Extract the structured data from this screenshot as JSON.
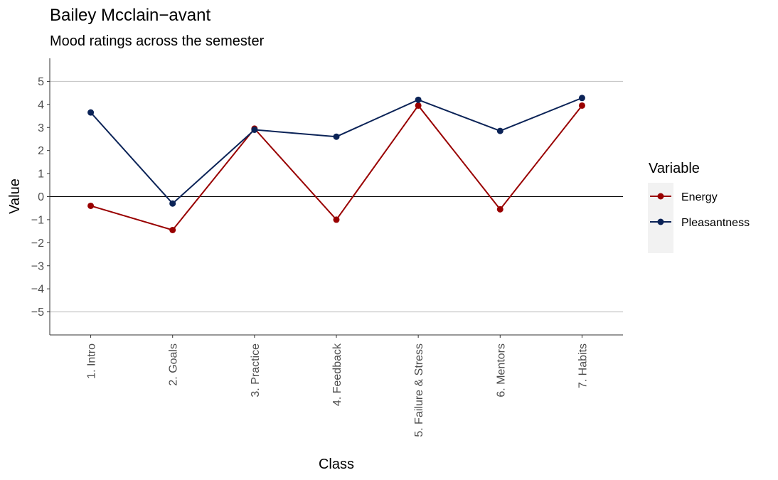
{
  "chart_data": {
    "type": "line",
    "title": "Bailey Mcclain−avant",
    "subtitle": "Mood ratings across the semester",
    "xlabel": "Class",
    "ylabel": "Value",
    "categories": [
      "1. Intro",
      "2. Goals",
      "3. Practice",
      "4. Feedback",
      "5. Failure & Stress",
      "6. Mentors",
      "7. Habits"
    ],
    "yticks": [
      5,
      4,
      3,
      2,
      1,
      0,
      -1,
      -2,
      -3,
      -4,
      -5
    ],
    "ytick_labels": [
      "5",
      "4",
      "3",
      "2",
      "1",
      "0",
      "−1",
      "−2",
      "−3",
      "−4",
      "−5"
    ],
    "ylim": [
      -6,
      6
    ],
    "reference_lines": [
      5,
      -5
    ],
    "zero_line": 0,
    "legend": {
      "title": "Variable",
      "placement": "right"
    },
    "series": [
      {
        "name": "Energy",
        "color": "#990000",
        "values": [
          -0.4,
          -1.45,
          2.95,
          -1.0,
          3.95,
          -0.55,
          3.95
        ]
      },
      {
        "name": "Pleasantness",
        "color": "#0b2357",
        "values": [
          3.65,
          -0.3,
          2.9,
          2.6,
          4.2,
          2.85,
          4.28
        ]
      }
    ]
  }
}
